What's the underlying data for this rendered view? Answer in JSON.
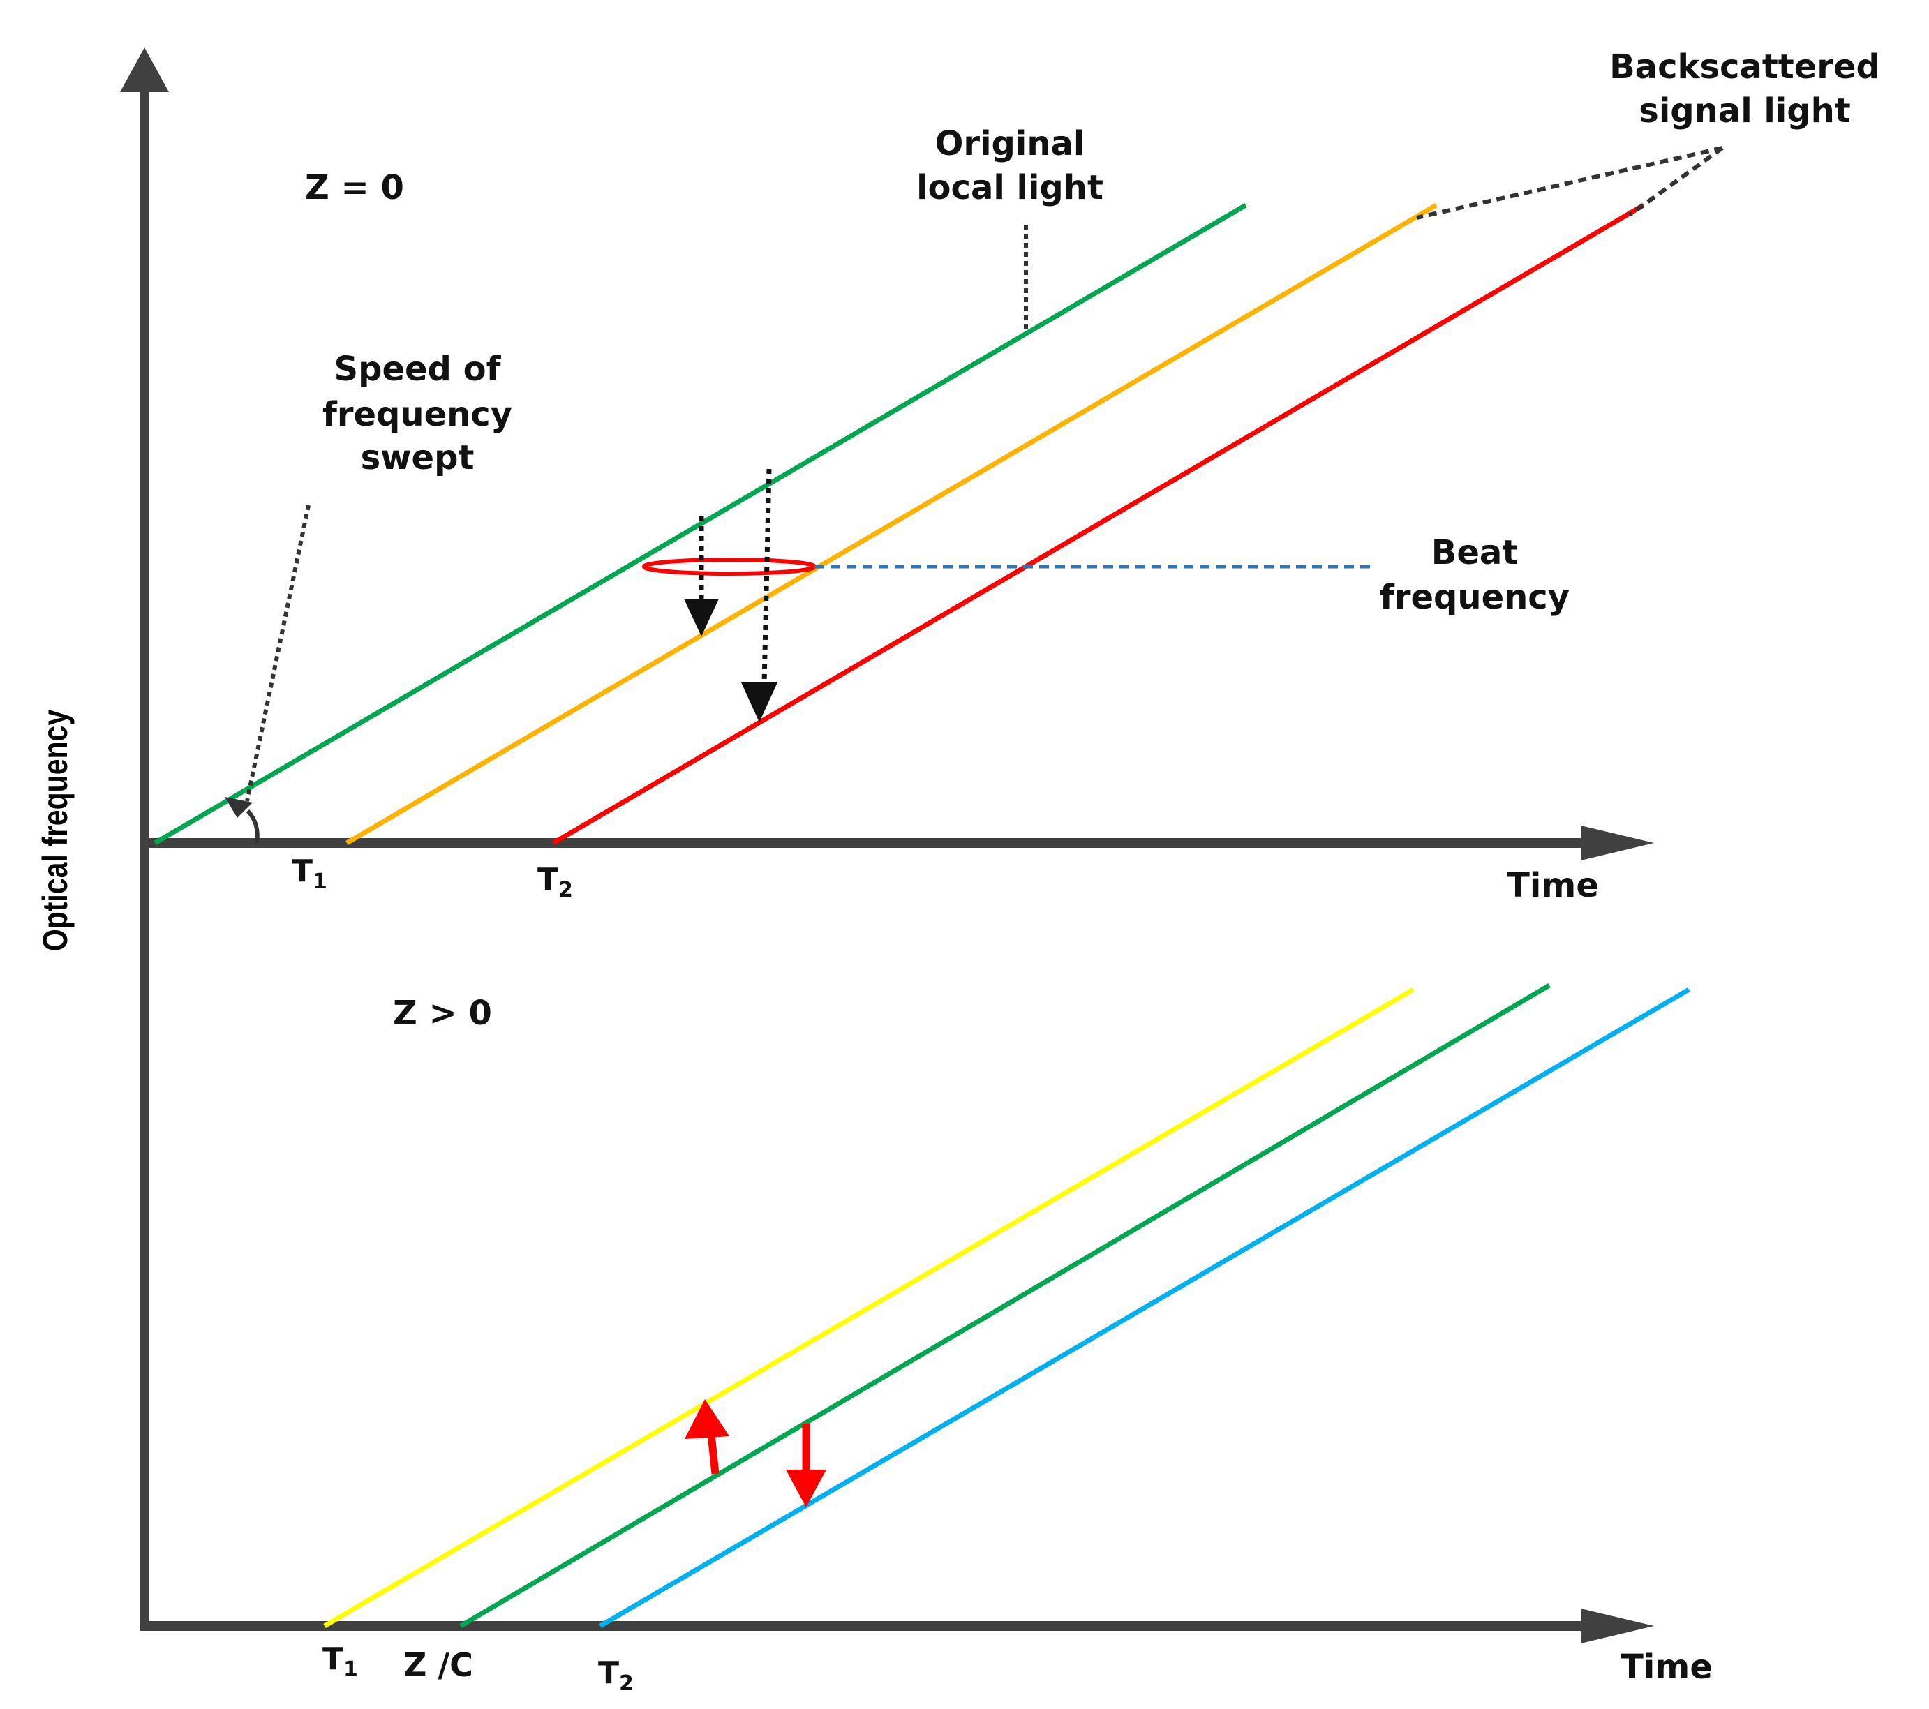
{
  "axis_label_y": "Optical frequency",
  "top_panel": {
    "condition": "Z = 0",
    "xlabel": "Time",
    "tick_t1": "T",
    "tick_t1_sub": "1",
    "tick_t2": "T",
    "tick_t2_sub": "2",
    "annotations": {
      "original_line1": "Original",
      "original_line2": "local light",
      "backscattered_line1": "Backscattered",
      "backscattered_line2": "signal light",
      "speed_line1": "Speed of",
      "speed_line2": "frequency",
      "speed_line3": "swept",
      "beat_line1": "Beat",
      "beat_line2": "frequency"
    }
  },
  "bottom_panel": {
    "condition": "Z > 0",
    "xlabel": "Time",
    "tick_t1": "T",
    "tick_t1_sub": "1",
    "tick_zc": "Z /C",
    "tick_t2": "T",
    "tick_t2_sub": "2"
  },
  "colors": {
    "axis": "#404040",
    "local_light": "#00A650",
    "signal_orange": "#FFB300",
    "signal_red": "#FF0000",
    "bottom_yellow": "#FFFF00",
    "bottom_green": "#00A650",
    "bottom_blue": "#00B0F0",
    "beat_dashed": "#2E75B6",
    "pointer_dotted": "#333333"
  }
}
